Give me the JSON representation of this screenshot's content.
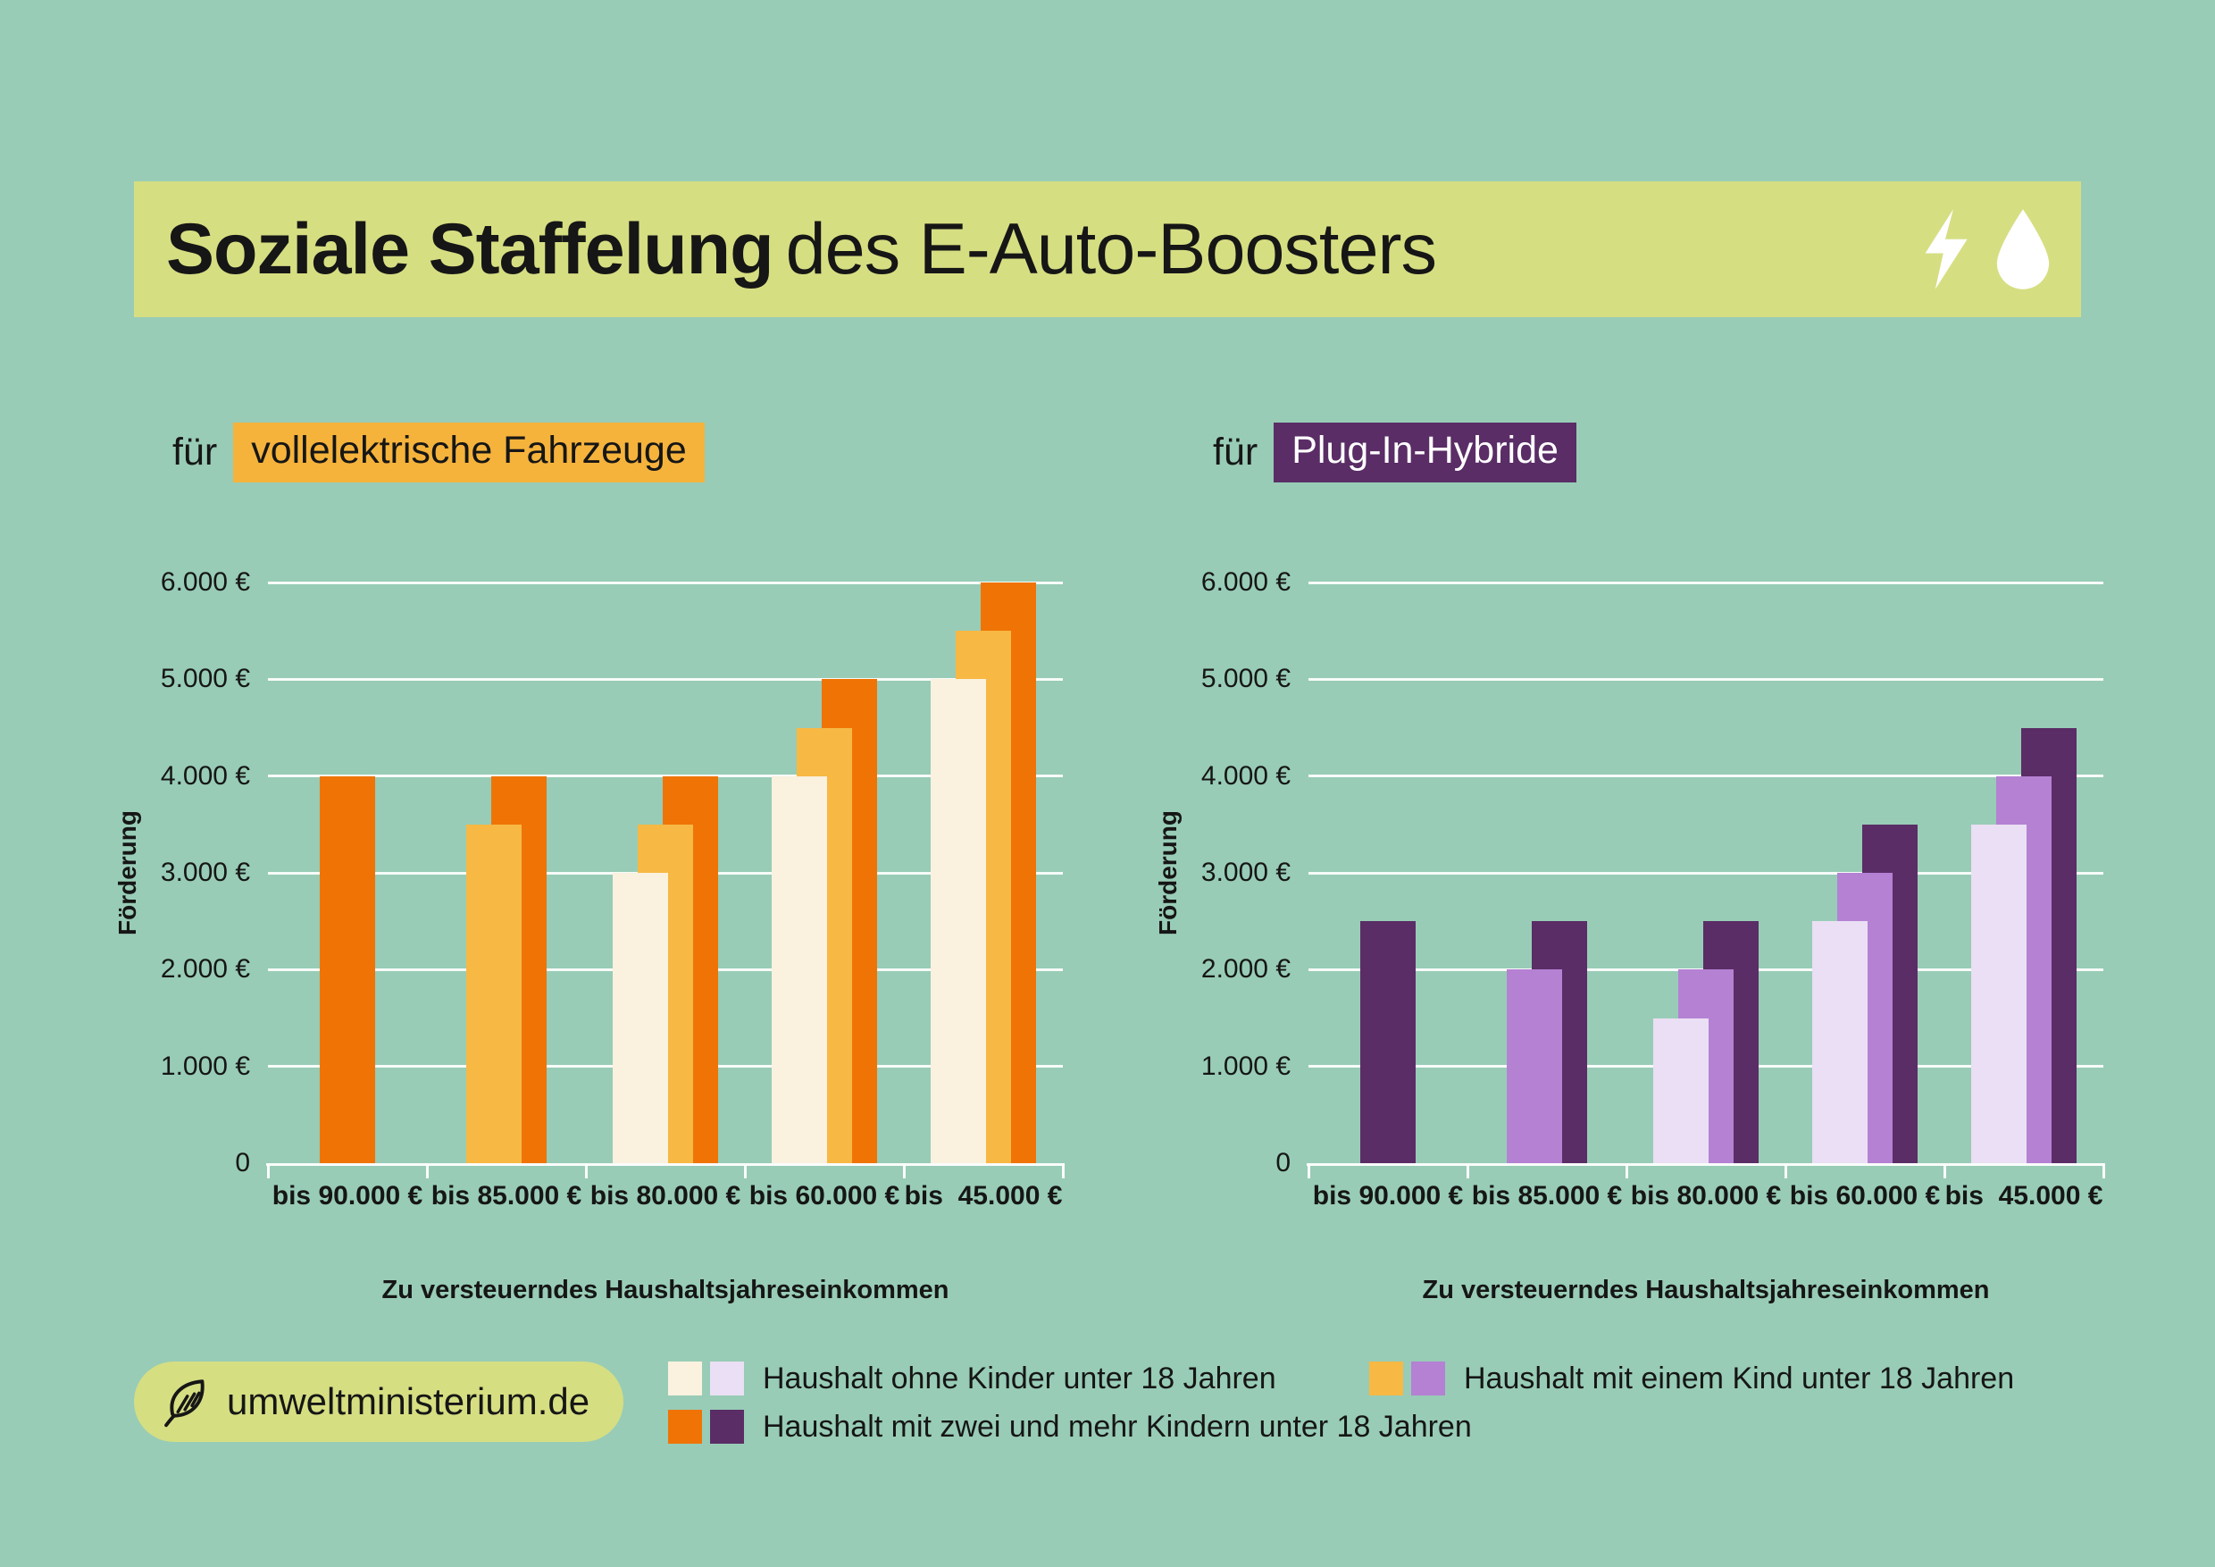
{
  "page": {
    "background": "#98CCB6",
    "banner": {
      "bg": "#D6DE82",
      "title_bold": "Soziale Staffelung",
      "title_rest": "des E-Auto-Boosters",
      "icons": [
        "lightning-icon",
        "droplet-icon"
      ],
      "icon_color": "#FFFFFF"
    },
    "badge": {
      "bg": "#D6DE82",
      "icon": "leaf-icon",
      "text": "umweltministerium.de"
    },
    "gridline_color": "#FFFFFF",
    "text_color": "#161616"
  },
  "legend": {
    "position": "bottom",
    "items": [
      {
        "label": "Haushalt ohne Kinder unter 18 Jahren",
        "colors": [
          "#FAF1DE",
          "#EADFF4"
        ]
      },
      {
        "label": "Haushalt mit einem Kind unter 18 Jahren",
        "colors": [
          "#F7B844",
          "#B481D3"
        ]
      },
      {
        "label": "Haushalt mit zwei und mehr Kindern unter 18 Jahren",
        "colors": [
          "#EF7405",
          "#5A2D66"
        ]
      }
    ]
  },
  "chart_data": [
    {
      "type": "bar",
      "title_prefix": "für",
      "title_highlight": "vollelektrische Fahrzeuge",
      "highlight_bg": "#F5B33C",
      "highlight_fg": "#161616",
      "ylabel": "Förderung",
      "xlabel": "Zu versteuerndes Haushaltsjahreseinkommen",
      "ylim": [
        0,
        6000
      ],
      "ytick_step": 1000,
      "ytick_labels": [
        "0",
        "1.000 €",
        "2.000 €",
        "3.000 €",
        "4.000 €",
        "5.000 €",
        "6.000 €"
      ],
      "categories": [
        "bis 90.000 €",
        "bis 85.000 €",
        "bis 80.000 €",
        "bis 60.000 €",
        "bis  45.000 €"
      ],
      "grid": true,
      "series": [
        {
          "name": "Haushalt ohne Kinder unter 18 Jahren",
          "color": "#FAF1DE",
          "values": [
            null,
            null,
            3000,
            4000,
            5000
          ]
        },
        {
          "name": "Haushalt mit einem Kind unter 18 Jahren",
          "color": "#F7B844",
          "values": [
            null,
            3500,
            3500,
            4500,
            5500
          ]
        },
        {
          "name": "Haushalt mit zwei und mehr Kindern unter 18 Jahren",
          "color": "#EF7405",
          "values": [
            4000,
            4000,
            4000,
            5000,
            6000
          ]
        }
      ]
    },
    {
      "type": "bar",
      "title_prefix": "für",
      "title_highlight": "Plug-In-Hybride",
      "highlight_bg": "#5A2D66",
      "highlight_fg": "#FFFFFF",
      "ylabel": "Förderung",
      "xlabel": "Zu versteuerndes Haushaltsjahreseinkommen",
      "ylim": [
        0,
        6000
      ],
      "ytick_step": 1000,
      "ytick_labels": [
        "0",
        "1.000 €",
        "2.000 €",
        "3.000 €",
        "4.000 €",
        "5.000 €",
        "6.000 €"
      ],
      "categories": [
        "bis 90.000 €",
        "bis 85.000 €",
        "bis 80.000 €",
        "bis 60.000 €",
        "bis  45.000 €"
      ],
      "grid": true,
      "series": [
        {
          "name": "Haushalt ohne Kinder unter 18 Jahren",
          "color": "#EADFF4",
          "values": [
            null,
            null,
            1500,
            2500,
            3500
          ]
        },
        {
          "name": "Haushalt mit einem Kind unter 18 Jahren",
          "color": "#B481D3",
          "values": [
            null,
            2000,
            2000,
            3000,
            4000
          ]
        },
        {
          "name": "Haushalt mit zwei und mehr Kindern unter 18 Jahren",
          "color": "#5A2D66",
          "values": [
            2500,
            2500,
            2500,
            3500,
            4500
          ]
        }
      ]
    }
  ]
}
